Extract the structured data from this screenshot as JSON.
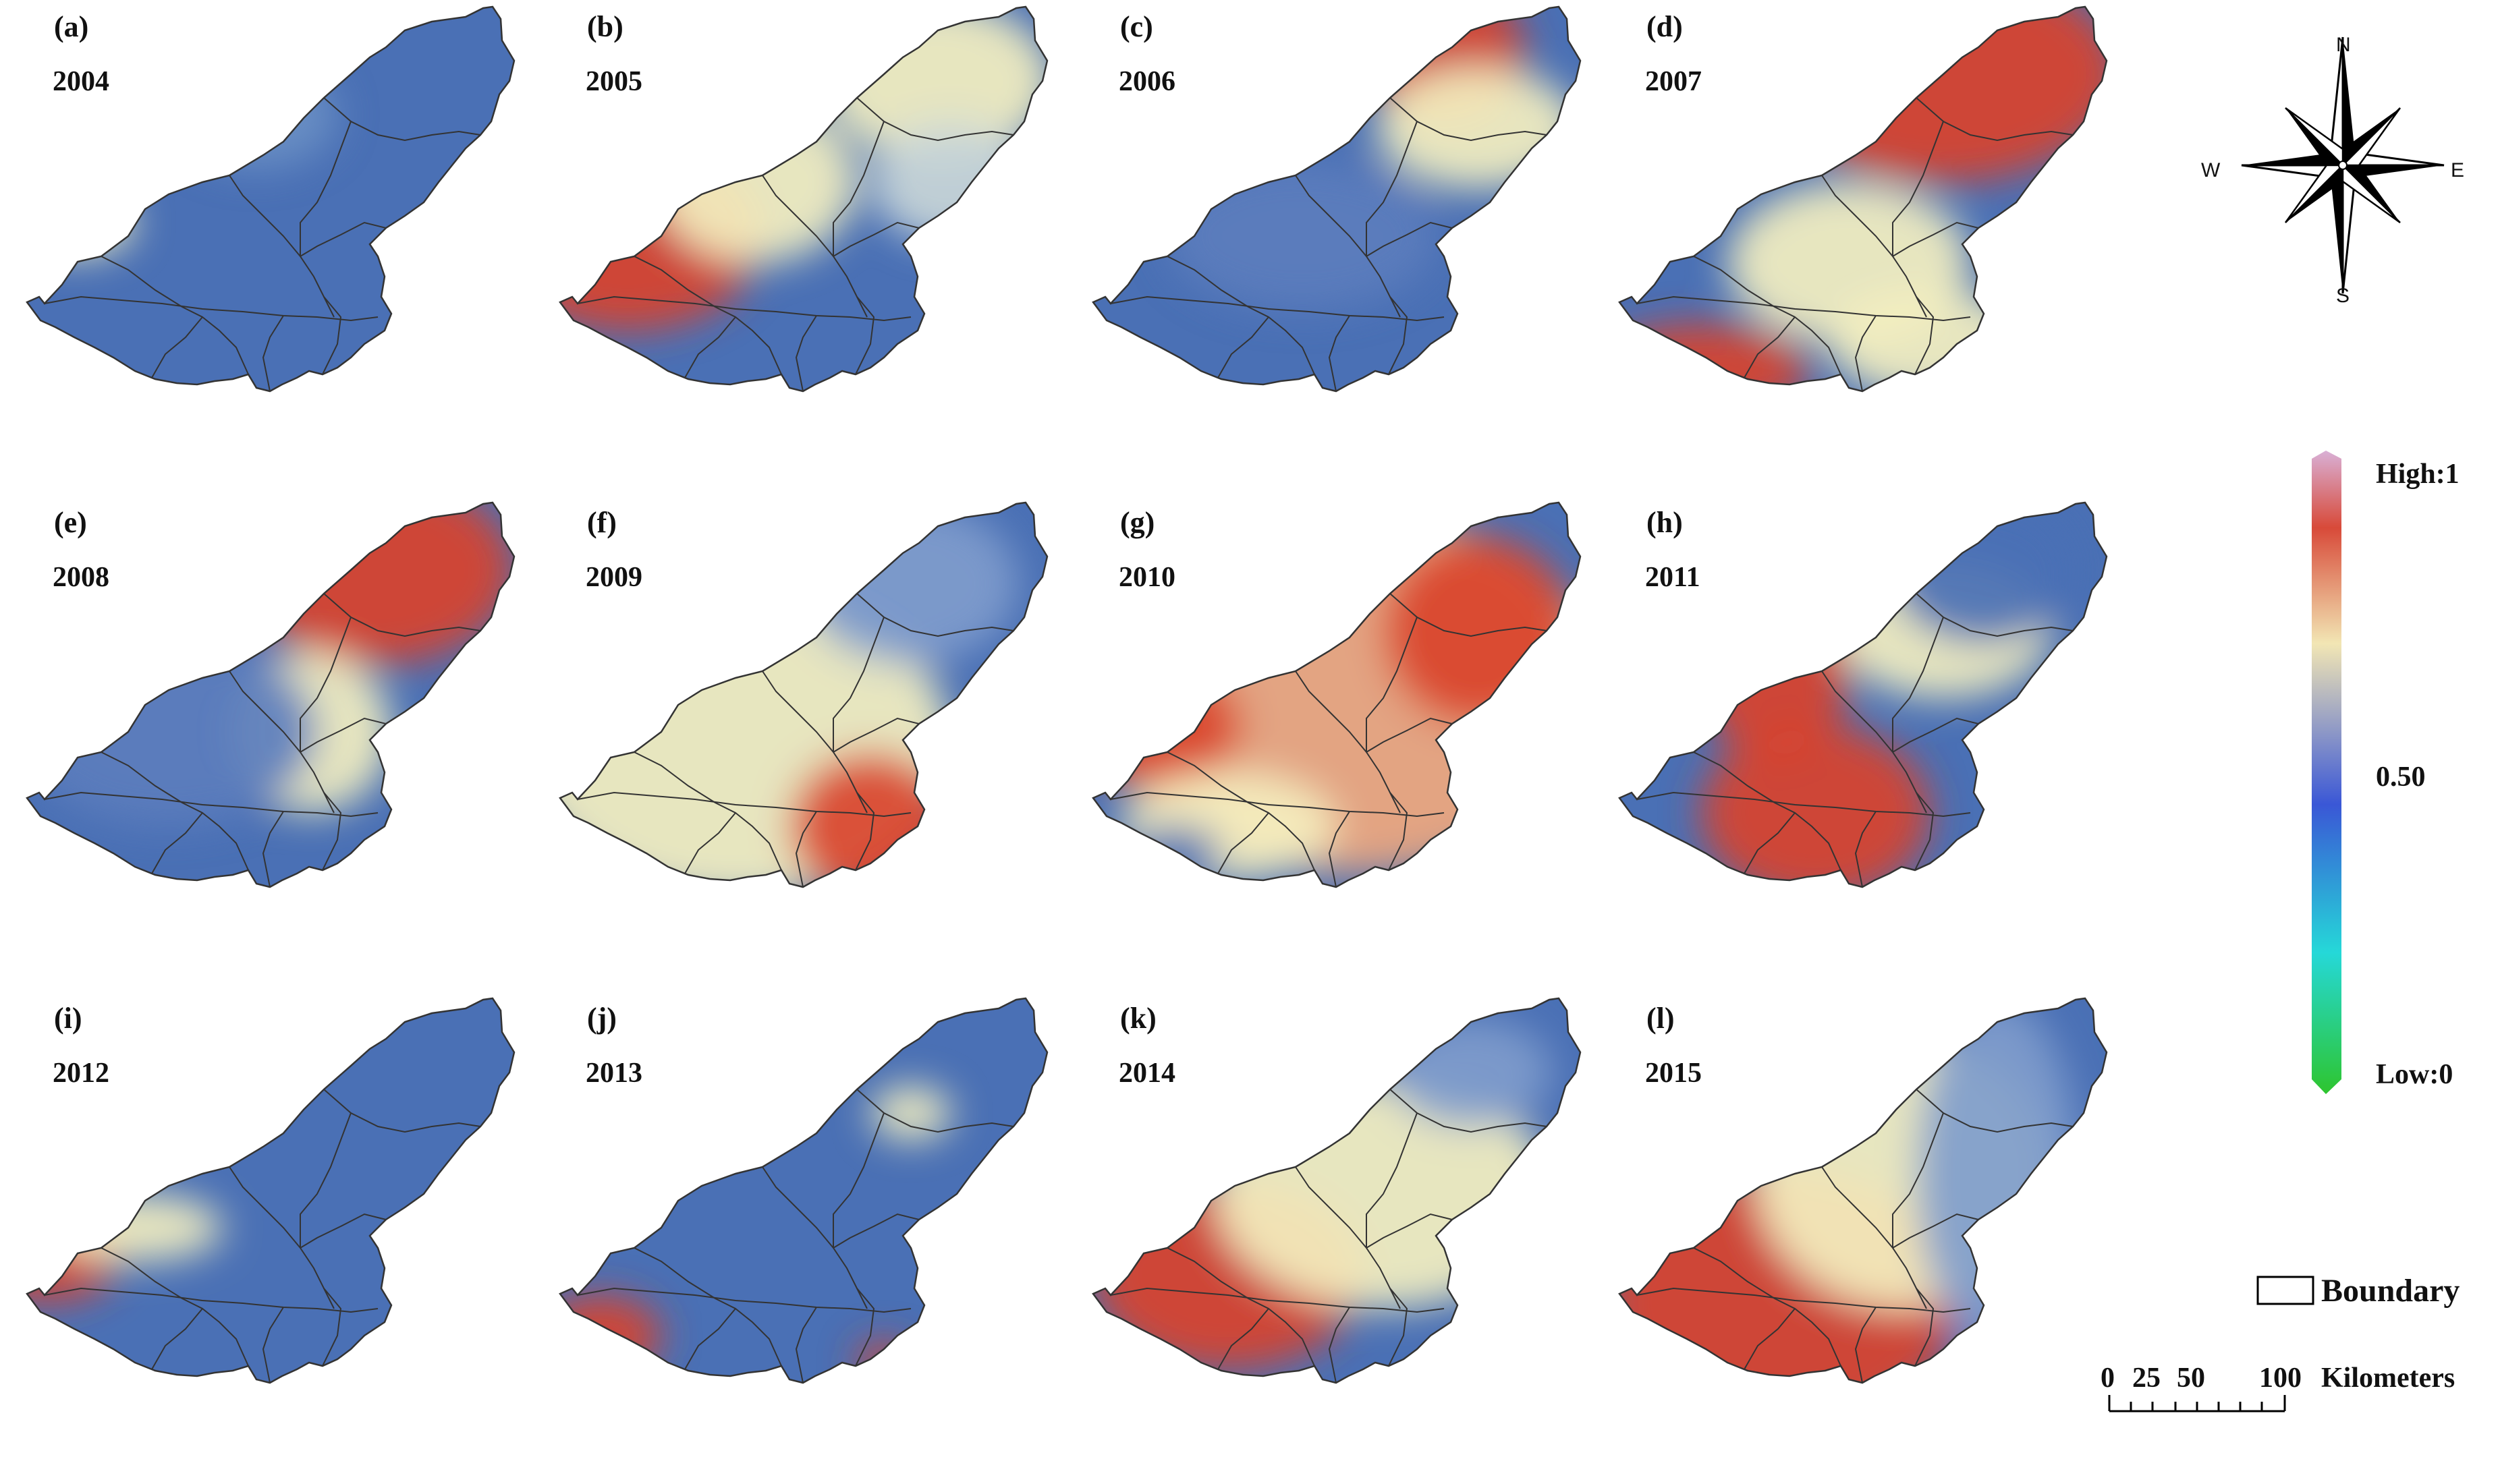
{
  "panels": [
    {
      "label": "(a)",
      "year": "2004",
      "level": "low"
    },
    {
      "label": "(b)",
      "year": "2005",
      "level": "mixed-west-high"
    },
    {
      "label": "(c)",
      "year": "2006",
      "level": "low-ne-high"
    },
    {
      "label": "(d)",
      "year": "2007",
      "level": "high-ne"
    },
    {
      "label": "(e)",
      "year": "2008",
      "level": "low-ne-high"
    },
    {
      "label": "(f)",
      "year": "2009",
      "level": "medium"
    },
    {
      "label": "(g)",
      "year": "2010",
      "level": "high"
    },
    {
      "label": "(h)",
      "year": "2011",
      "level": "mixed-sw-high"
    },
    {
      "label": "(i)",
      "year": "2012",
      "level": "low-west-high"
    },
    {
      "label": "(j)",
      "year": "2013",
      "level": "low"
    },
    {
      "label": "(k)",
      "year": "2014",
      "level": "medium-west-high"
    },
    {
      "label": "(l)",
      "year": "2015",
      "level": "high-west"
    }
  ],
  "compass": {
    "n": "N",
    "s": "S",
    "e": "E",
    "w": "W"
  },
  "legend": {
    "high": "High:1",
    "mid": "0.50",
    "low": "Low:0",
    "boundary": "Boundary",
    "colors": [
      "#d9b0d6",
      "#d84a39",
      "#f2e6b4",
      "#3a57d6",
      "#25d8d8",
      "#2ec52e"
    ]
  },
  "scale": {
    "ticks": [
      "0",
      "25",
      "50",
      "100"
    ],
    "unit": "Kilometers"
  },
  "colors": {
    "low": "#4a70b5",
    "mid": "#f4f0c0",
    "high": "#d9432e"
  }
}
